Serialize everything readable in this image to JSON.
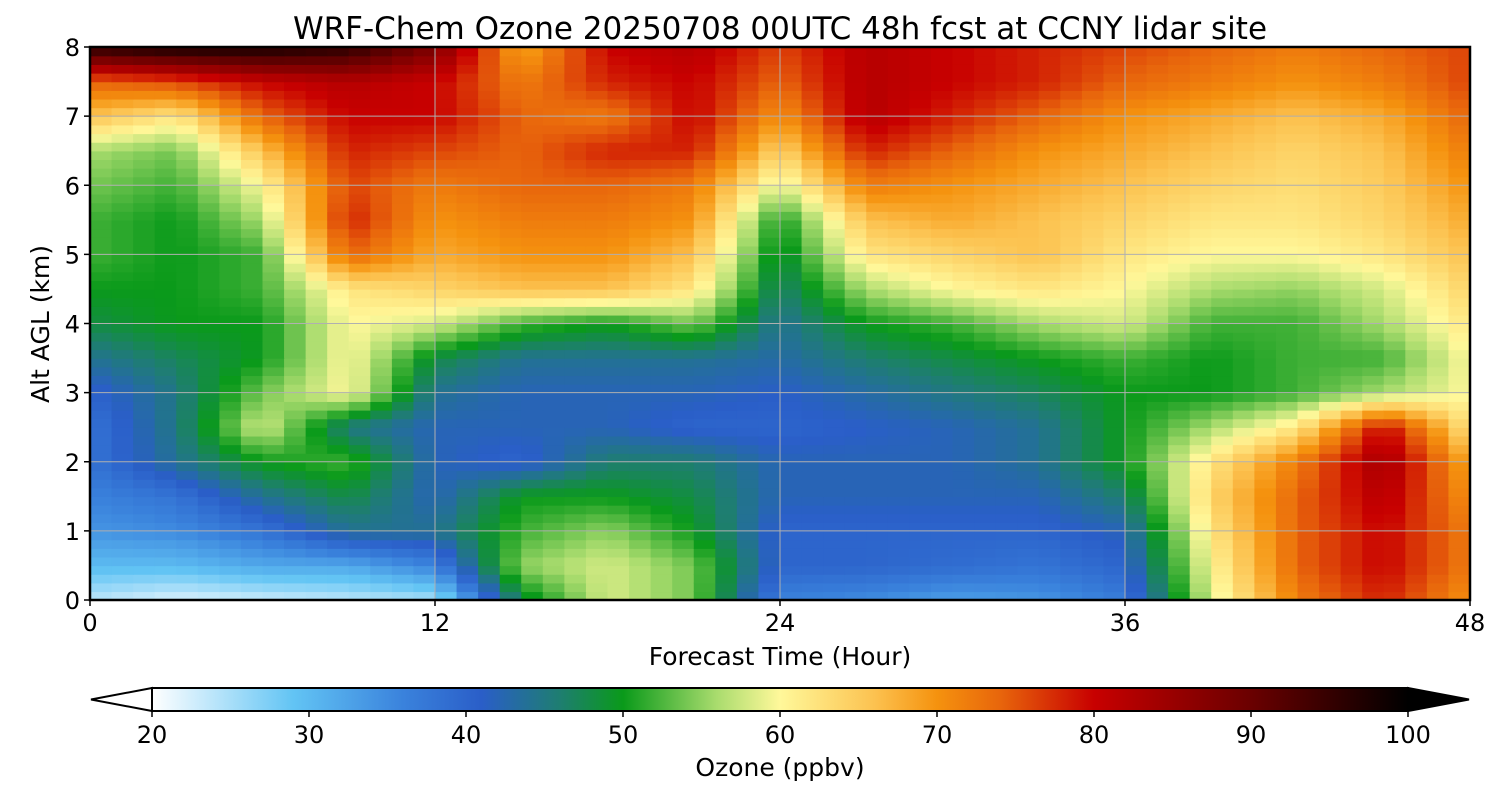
{
  "chart_data": {
    "type": "heatmap",
    "title": "WRF-Chem Ozone  20250708 00UTC 48h fcst at CCNY lidar site",
    "xlabel": "Forecast Time (Hour)",
    "ylabel": "Alt AGL (km)",
    "xlim": [
      0,
      48
    ],
    "ylim": [
      0,
      8
    ],
    "xticks": [
      "0",
      "12",
      "24",
      "36",
      "48"
    ],
    "yticks": [
      "0",
      "1",
      "2",
      "3",
      "4",
      "5",
      "6",
      "7",
      "8"
    ],
    "grid": true,
    "x_hours": [
      0,
      3,
      6,
      9,
      12,
      15,
      18,
      21,
      24,
      27,
      30,
      33,
      36,
      39,
      42,
      45,
      48
    ],
    "y_km": [
      0,
      0.5,
      1,
      1.5,
      2,
      2.5,
      3,
      3.5,
      4,
      4.5,
      5,
      5.5,
      6,
      6.5,
      7,
      7.5,
      8
    ],
    "ozone_ppbv": [
      [
        24,
        22,
        23,
        24,
        25,
        48,
        58,
        54,
        36,
        35,
        33,
        34,
        37,
        58,
        72,
        78,
        70
      ],
      [
        30,
        30,
        32,
        32,
        36,
        55,
        58,
        54,
        40,
        40,
        39,
        38,
        40,
        60,
        74,
        80,
        72
      ],
      [
        34,
        35,
        38,
        44,
        44,
        52,
        55,
        50,
        40,
        40,
        40,
        40,
        42,
        62,
        74,
        80,
        72
      ],
      [
        36,
        38,
        44,
        48,
        42,
        50,
        50,
        48,
        42,
        42,
        42,
        42,
        46,
        64,
        74,
        82,
        70
      ],
      [
        38,
        44,
        50,
        52,
        42,
        40,
        46,
        46,
        42,
        42,
        42,
        44,
        50,
        62,
        72,
        84,
        68
      ],
      [
        38,
        45,
        58,
        45,
        42,
        42,
        42,
        40,
        40,
        41,
        42,
        44,
        50,
        56,
        62,
        80,
        62
      ],
      [
        40,
        45,
        54,
        60,
        44,
        42,
        42,
        42,
        41,
        43,
        45,
        47,
        50,
        50,
        52,
        56,
        60
      ],
      [
        44,
        47,
        50,
        60,
        48,
        44,
        44,
        44,
        43,
        46,
        48,
        50,
        52,
        50,
        52,
        52,
        60
      ],
      [
        48,
        50,
        50,
        60,
        58,
        52,
        50,
        54,
        44,
        50,
        52,
        56,
        58,
        52,
        52,
        56,
        62
      ],
      [
        50,
        50,
        52,
        62,
        64,
        66,
        66,
        62,
        46,
        56,
        60,
        62,
        60,
        56,
        55,
        58,
        64
      ],
      [
        52,
        50,
        52,
        74,
        68,
        70,
        70,
        66,
        48,
        62,
        64,
        66,
        62,
        60,
        60,
        62,
        66
      ],
      [
        52,
        50,
        56,
        78,
        70,
        72,
        72,
        70,
        50,
        66,
        68,
        66,
        64,
        62,
        62,
        64,
        68
      ],
      [
        54,
        52,
        60,
        76,
        72,
        74,
        74,
        72,
        58,
        72,
        70,
        68,
        66,
        64,
        63,
        65,
        70
      ],
      [
        56,
        54,
        66,
        78,
        76,
        74,
        78,
        78,
        64,
        78,
        74,
        70,
        68,
        66,
        64,
        66,
        72
      ],
      [
        66,
        62,
        74,
        80,
        80,
        74,
        72,
        80,
        70,
        82,
        78,
        74,
        70,
        68,
        66,
        68,
        74
      ],
      [
        74,
        76,
        80,
        82,
        80,
        72,
        78,
        80,
        74,
        82,
        80,
        78,
        74,
        72,
        70,
        72,
        76
      ],
      [
        96,
        98,
        98,
        96,
        88,
        68,
        80,
        82,
        76,
        82,
        80,
        78,
        76,
        74,
        72,
        74,
        76
      ]
    ],
    "colorbar": {
      "label": "Ozone  (ppbv)",
      "range": [
        20,
        100
      ],
      "ticks": [
        "20",
        "30",
        "40",
        "50",
        "60",
        "70",
        "80",
        "90",
        "100"
      ],
      "extend": "both",
      "placement": "bottom",
      "stops": [
        {
          "v": 20,
          "c": "#ffffff"
        },
        {
          "v": 29,
          "c": "#62c4f4"
        },
        {
          "v": 36,
          "c": "#3a82dc"
        },
        {
          "v": 41,
          "c": "#2a5ec8"
        },
        {
          "v": 46,
          "c": "#1e7e70"
        },
        {
          "v": 50,
          "c": "#0a9a1a"
        },
        {
          "v": 56,
          "c": "#aadc6e"
        },
        {
          "v": 60,
          "c": "#fff89a"
        },
        {
          "v": 66,
          "c": "#fcc250"
        },
        {
          "v": 70,
          "c": "#f5920e"
        },
        {
          "v": 74,
          "c": "#e8660c"
        },
        {
          "v": 80,
          "c": "#c80000"
        },
        {
          "v": 90,
          "c": "#6a0000"
        },
        {
          "v": 100,
          "c": "#000000"
        }
      ]
    }
  }
}
